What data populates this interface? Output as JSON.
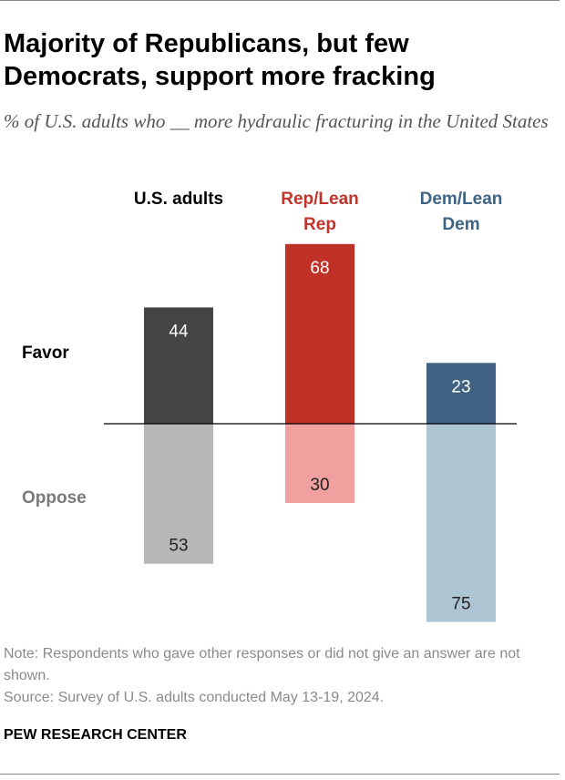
{
  "title": "Majority of Republicans, but few Democrats, support more fracking",
  "subtitle": "% of U.S. adults who __ more hydraulic fracturing in the United States",
  "note": "Note: Respondents who gave other responses or did not give an answer are not shown.",
  "source": "Source: Survey of U.S. adults conducted May 13-19, 2024.",
  "brand": "PEW RESEARCH CENTER",
  "chart_data": {
    "type": "bar",
    "categories": [
      "U.S. adults",
      "Rep/Lean Rep",
      "Dem/Lean Dem"
    ],
    "category_lines": [
      [
        "U.S. adults"
      ],
      [
        "Rep/Lean",
        "Rep"
      ],
      [
        "Dem/Lean",
        "Dem"
      ]
    ],
    "category_colors": [
      "#000000",
      "#c0342b",
      "#3f6384"
    ],
    "series": [
      {
        "name": "Favor",
        "values": [
          44,
          68,
          23
        ],
        "colors": [
          "#444444",
          "#bf3127",
          "#416283"
        ],
        "direction": "up",
        "label_color": "#000000"
      },
      {
        "name": "Oppose",
        "values": [
          53,
          30,
          75
        ],
        "colors": [
          "#b7b7b7",
          "#efa09f",
          "#aec5d4"
        ],
        "direction": "down",
        "label_color": "#7a7a7a"
      }
    ],
    "value_label_colors": {
      "Favor": "#ffffff",
      "Oppose": "#222222"
    },
    "ylim": [
      0,
      100
    ],
    "legend": "left",
    "grid": false
  }
}
